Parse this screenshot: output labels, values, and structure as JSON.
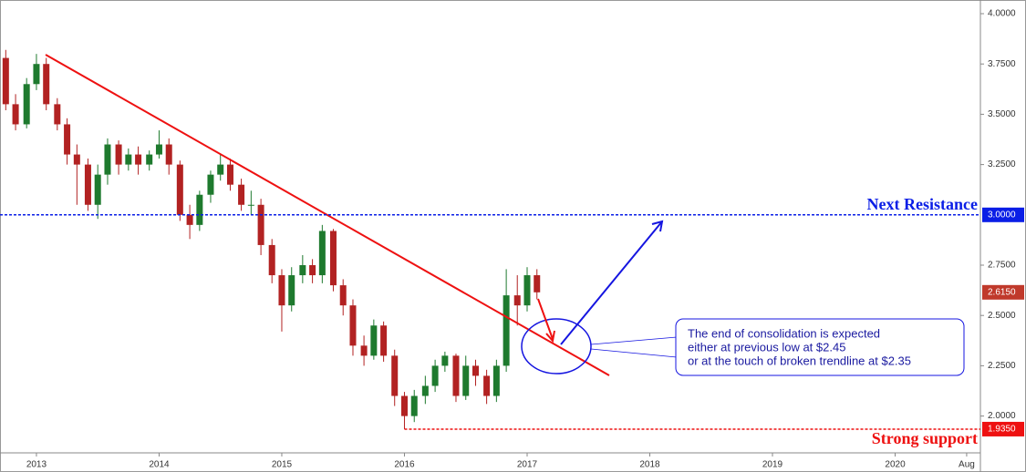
{
  "chart_data": {
    "type": "candlestick",
    "x": [
      2012.75,
      2012.83,
      2012.92,
      2013.0,
      2013.08,
      2013.17,
      2013.25,
      2013.33,
      2013.42,
      2013.5,
      2013.58,
      2013.67,
      2013.75,
      2013.83,
      2013.92,
      2014.0,
      2014.08,
      2014.17,
      2014.25,
      2014.33,
      2014.42,
      2014.5,
      2014.58,
      2014.67,
      2014.75,
      2014.83,
      2014.92,
      2015.0,
      2015.08,
      2015.17,
      2015.25,
      2015.33,
      2015.42,
      2015.5,
      2015.58,
      2015.67,
      2015.75,
      2015.83,
      2015.92,
      2016.0,
      2016.08,
      2016.17,
      2016.25,
      2016.33,
      2016.42,
      2016.5,
      2016.58,
      2016.67,
      2016.75,
      2016.83,
      2016.92,
      2017.0,
      2017.08
    ],
    "open": [
      3.78,
      3.55,
      3.45,
      3.65,
      3.75,
      3.55,
      3.45,
      3.3,
      3.25,
      3.05,
      3.2,
      3.35,
      3.25,
      3.3,
      3.25,
      3.3,
      3.35,
      3.25,
      3.0,
      2.95,
      3.1,
      3.2,
      3.25,
      3.15,
      3.05,
      3.05,
      2.85,
      2.7,
      2.55,
      2.7,
      2.75,
      2.7,
      2.92,
      2.65,
      2.55,
      2.35,
      2.3,
      2.45,
      2.3,
      2.1,
      2.0,
      2.1,
      2.15,
      2.25,
      2.3,
      2.1,
      2.25,
      2.2,
      2.1,
      2.25,
      2.6,
      2.55,
      2.7
    ],
    "high": [
      3.82,
      3.6,
      3.68,
      3.8,
      3.78,
      3.58,
      3.48,
      3.35,
      3.28,
      3.25,
      3.38,
      3.37,
      3.33,
      3.34,
      3.32,
      3.42,
      3.38,
      3.27,
      3.05,
      3.12,
      3.22,
      3.3,
      3.28,
      3.18,
      3.12,
      3.08,
      2.88,
      2.73,
      2.74,
      2.8,
      2.78,
      2.95,
      2.93,
      2.68,
      2.58,
      2.4,
      2.48,
      2.47,
      2.33,
      2.12,
      2.13,
      2.2,
      2.28,
      2.32,
      2.31,
      2.3,
      2.28,
      2.23,
      2.28,
      2.73,
      2.7,
      2.74,
      2.73
    ],
    "low": [
      3.52,
      3.42,
      3.43,
      3.62,
      3.52,
      3.42,
      3.25,
      3.05,
      3.02,
      2.98,
      3.15,
      3.2,
      3.22,
      3.2,
      3.22,
      3.28,
      3.2,
      2.97,
      2.88,
      2.92,
      3.06,
      3.17,
      3.12,
      3.02,
      3.0,
      2.8,
      2.66,
      2.42,
      2.52,
      2.66,
      2.66,
      2.66,
      2.62,
      2.5,
      2.3,
      2.25,
      2.28,
      2.27,
      2.05,
      1.935,
      1.97,
      2.06,
      2.12,
      2.22,
      2.07,
      2.08,
      2.15,
      2.06,
      2.07,
      2.22,
      2.45,
      2.52,
      2.58
    ],
    "close": [
      3.55,
      3.45,
      3.65,
      3.75,
      3.55,
      3.45,
      3.3,
      3.25,
      3.05,
      3.2,
      3.35,
      3.25,
      3.3,
      3.25,
      3.3,
      3.35,
      3.25,
      3.0,
      2.95,
      3.1,
      3.2,
      3.25,
      3.15,
      3.05,
      3.05,
      2.85,
      2.7,
      2.55,
      2.7,
      2.75,
      2.7,
      2.92,
      2.65,
      2.55,
      2.35,
      2.3,
      2.45,
      2.3,
      2.1,
      2.0,
      2.1,
      2.15,
      2.25,
      2.3,
      2.1,
      2.25,
      2.2,
      2.1,
      2.25,
      2.6,
      2.55,
      2.7,
      2.615
    ],
    "up_color": "#1e7a2e",
    "down_color": "#b22222",
    "xlim": [
      2012.703,
      2020.695
    ],
    "xticks": [
      2013,
      2014,
      2015,
      2016,
      2017,
      2018,
      2019,
      2020,
      {
        "value": 2020.583,
        "label": "Aug"
      }
    ],
    "ylim": [
      1.817,
      4.068
    ],
    "yticks": [
      {
        "value": 4,
        "label": "4.0000"
      },
      {
        "value": 3.75,
        "label": "3.7500"
      },
      {
        "value": 3.5,
        "label": "3.5000"
      },
      {
        "value": 3.25,
        "label": "3.2500"
      },
      {
        "value": 2.75,
        "label": "2.7500"
      },
      {
        "value": 2.5,
        "label": "2.5000"
      },
      {
        "value": 2.25,
        "label": "2.2500"
      },
      {
        "value": 2,
        "label": "2.0000"
      }
    ],
    "levels": [
      {
        "value": 3,
        "label": "3.0000",
        "name": "Next Resistance",
        "color": "#0a1ee6"
      },
      {
        "value": 1.935,
        "label": "1.9350",
        "name": "Strong support",
        "color": "#ee1111"
      }
    ],
    "last_price": {
      "value": 2.615,
      "label": "2.6150",
      "color": "#c0392b"
    },
    "annotation": [
      "The end of consolidation is expected",
      "either at previous low at $2.45",
      "or at the touch of broken trendline at $2.35"
    ]
  }
}
